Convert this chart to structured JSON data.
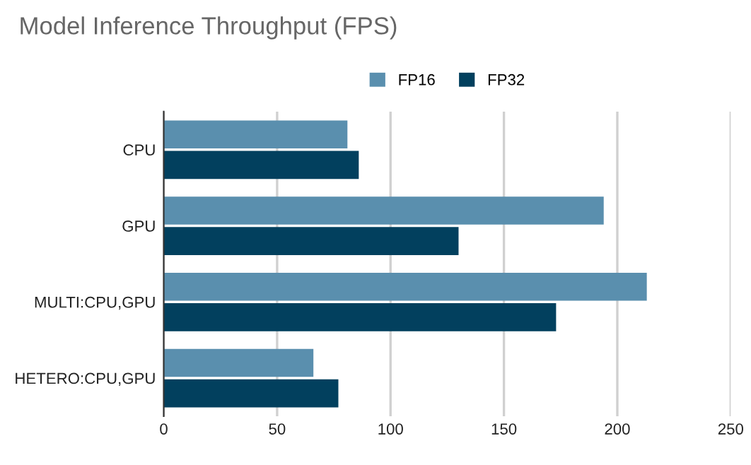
{
  "chart_data": {
    "type": "bar",
    "orientation": "horizontal",
    "title": "Model Inference Throughput (FPS)",
    "categories": [
      "CPU",
      "GPU",
      "MULTI:CPU,GPU",
      "HETERO:CPU,GPU"
    ],
    "series": [
      {
        "name": "FP16",
        "color": "#5a8fae",
        "values": [
          81,
          194,
          213,
          66
        ]
      },
      {
        "name": "FP32",
        "color": "#02405e",
        "values": [
          86,
          130,
          173,
          77
        ]
      }
    ],
    "xlim": [
      0,
      250
    ],
    "xticks": [
      0,
      50,
      100,
      150,
      200,
      250
    ],
    "grid": "x",
    "legend": "top"
  }
}
